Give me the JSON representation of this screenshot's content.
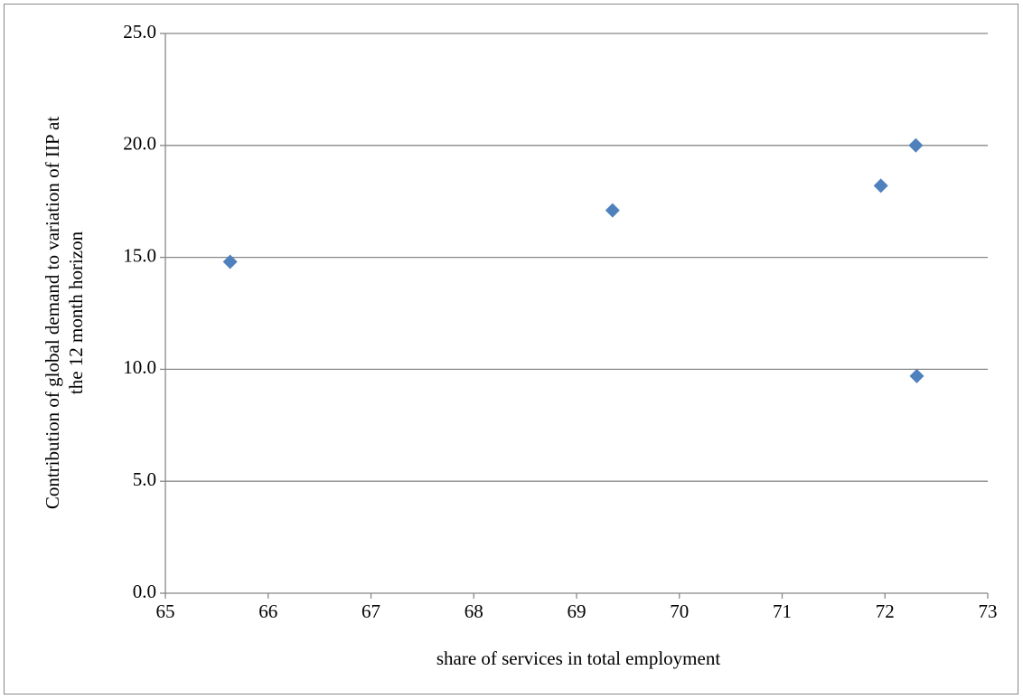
{
  "chart_data": {
    "type": "scatter",
    "x_label": "share of services in total employment",
    "y_label": [
      "Contribution of global demand to variation of IIP at",
      "the 12 month horizon"
    ],
    "series": [
      {
        "color": "#4f81bd",
        "marker": "diamond",
        "x": [
          65.63,
          69.35,
          71.96,
          72.3,
          72.31
        ],
        "values": [
          14.8,
          17.1,
          18.2,
          20.0,
          9.7
        ]
      }
    ],
    "xlim": [
      65,
      73
    ],
    "xticks": [
      65,
      66,
      67,
      68,
      69,
      70,
      71,
      72,
      73
    ],
    "ylim": [
      0,
      25
    ],
    "yticks": [
      {
        "value": 0,
        "label": "0.0"
      },
      {
        "value": 5,
        "label": "5.0"
      },
      {
        "value": 10,
        "label": "10.0"
      },
      {
        "value": 15,
        "label": "15.0"
      },
      {
        "value": 20,
        "label": "20.0"
      },
      {
        "value": 25,
        "label": "25.0"
      }
    ],
    "grid": true
  }
}
